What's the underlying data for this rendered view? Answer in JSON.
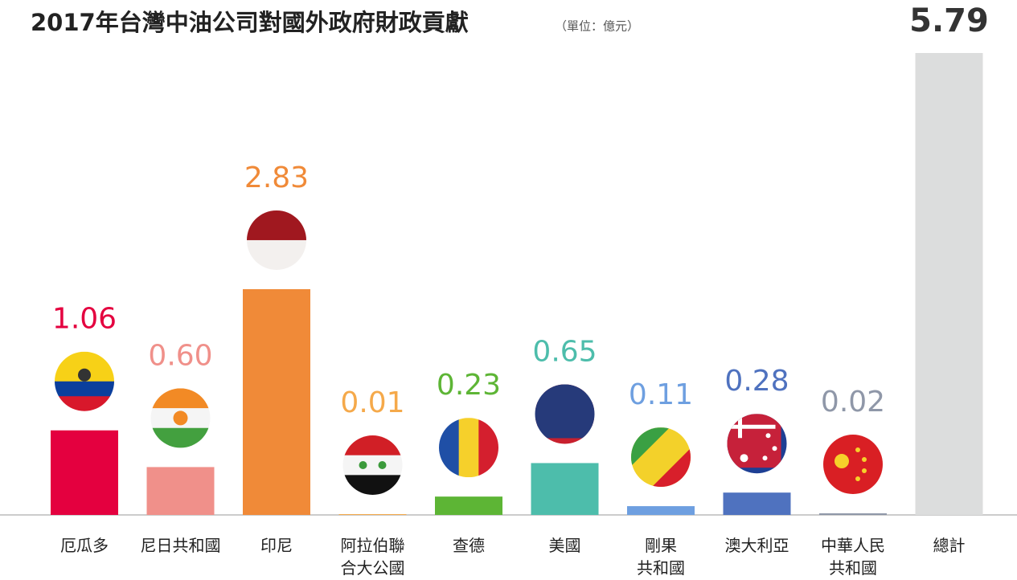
{
  "chart_data": {
    "type": "bar",
    "title": "2017年台灣中油公司對國外政府財政貢獻",
    "subtitle": "（單位：億元）",
    "categories": [
      "厄瓜多",
      "尼日共和國",
      "印尼",
      "阿拉伯聯\n合大公國",
      "查德",
      "美國",
      "剛果\n共和國",
      "澳大利亞",
      "中華人民\n共和國",
      "總計"
    ],
    "values": [
      1.06,
      0.6,
      2.83,
      0.01,
      0.23,
      0.65,
      0.11,
      0.28,
      0.02,
      5.79
    ],
    "value_labels": [
      "1.06",
      "0.60",
      "2.83",
      "0.01",
      "0.23",
      "0.65",
      "0.11",
      "0.28",
      "0.02",
      "5.79"
    ],
    "colors": [
      "#e4003f",
      "#f0908a",
      "#f08a38",
      "#f5a94a",
      "#5db535",
      "#4dbdab",
      "#6e9fe0",
      "#4f72bf",
      "#8f97a8",
      "#dcdddd"
    ],
    "label_colors": [
      "#e4003f",
      "#f0908a",
      "#f08a38",
      "#f5a94a",
      "#5db535",
      "#4dbdab",
      "#6e9fe0",
      "#4f72bf",
      "#8f97a8",
      "#333333"
    ]
  }
}
